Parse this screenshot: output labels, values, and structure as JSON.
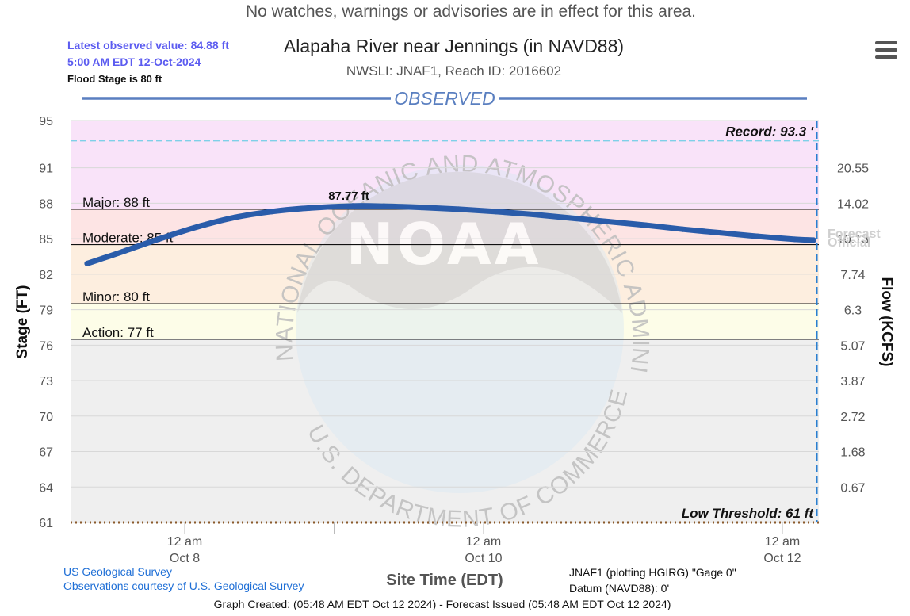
{
  "banner": "No watches, warnings or advisories are in effect for this area.",
  "observed_info": {
    "latest_line": "Latest observed value: 84.88 ft",
    "time_line": "5:00 AM EDT 12-Oct-2024",
    "flood_stage": "Flood Stage is 80 ft"
  },
  "title": "Alapaha River near Jennings (in NAVD88)",
  "subtitle": "NWSLI: JNAF1, Reach ID: 2016602",
  "section_label": "OBSERVED",
  "watermark": {
    "top_text": "NATIONAL OCEANIC AND ATMOSPHERIC ADMINISTRATION",
    "bottom_text": "U.S. DEPARTMENT OF COMMERCE",
    "logo_text": "NOAA"
  },
  "forecast_label": "Forecast",
  "official_label": "Official",
  "footer": {
    "source": "US Geological Survey",
    "courtesy": "Observations courtesy of U.S. Geological Survey",
    "gage": "JNAF1 (plotting HGIRG) \"Gage 0\"",
    "datum": "Datum (NAVD88): 0'",
    "created": "Graph Created: (05:48 AM EDT Oct 12 2024) - Forecast Issued (05:48 AM EDT Oct 12 2024)"
  },
  "colors": {
    "record_band": "#f9e3f9",
    "major_band": "#fde4e4",
    "moderate_band": "#fdeedf",
    "minor_band": "#fdf8dc",
    "action_band": "#fdfde8",
    "below_band": "#efefef",
    "series": "#2a5caa",
    "record_line": "#7fd0e8",
    "low_line": "#8b5a2b",
    "now_line": "#2a7fd0",
    "observed_header": "#5a7fc0"
  },
  "chart_data": {
    "type": "line",
    "title": "Alapaha River near Jennings (in NAVD88)",
    "xlabel": "Site Time (EDT)",
    "ylabel": "Stage (FT)",
    "y2label": "Flow (KCFS)",
    "ylim": [
      61,
      95
    ],
    "xlim": [
      "2024-10-07 08:20",
      "2024-10-12 05:00"
    ],
    "y_ticks": [
      95,
      91,
      88,
      85,
      82,
      79,
      76,
      73,
      70,
      67,
      64,
      61
    ],
    "y2_ticks": [
      {
        "stage": 91,
        "flow": "20.55"
      },
      {
        "stage": 88,
        "flow": "14.02"
      },
      {
        "stage": 85,
        "flow": "10.13"
      },
      {
        "stage": 82,
        "flow": "7.74"
      },
      {
        "stage": 79,
        "flow": "6.3"
      },
      {
        "stage": 76,
        "flow": "5.07"
      },
      {
        "stage": 73,
        "flow": "3.87"
      },
      {
        "stage": 70,
        "flow": "2.72"
      },
      {
        "stage": 67,
        "flow": "1.68"
      },
      {
        "stage": 64,
        "flow": "0.67"
      }
    ],
    "x_ticks": [
      {
        "x": "2024-10-08 00:00",
        "time": "12 am",
        "date": "Oct 8"
      },
      {
        "x": "2024-10-10 00:00",
        "time": "12 am",
        "date": "Oct 10"
      },
      {
        "x": "2024-10-12 00:00",
        "time": "12 am",
        "date": "Oct 12"
      }
    ],
    "x_minor_ticks": [
      "2024-10-09 00:00",
      "2024-10-11 00:00"
    ],
    "thresholds": [
      {
        "name": "Major",
        "label": "Major: 88 ft",
        "value": 87.5
      },
      {
        "name": "Moderate",
        "label": "Moderate: 85 ft",
        "value": 84.5
      },
      {
        "name": "Minor",
        "label": "Minor: 80 ft",
        "value": 79.5
      },
      {
        "name": "Action",
        "label": "Action: 77 ft",
        "value": 76.5
      }
    ],
    "bands": [
      {
        "from": 87.5,
        "to": 95,
        "color_key": "record_band"
      },
      {
        "from": 84.5,
        "to": 87.5,
        "color_key": "major_band"
      },
      {
        "from": 79.5,
        "to": 84.5,
        "color_key": "moderate_band"
      },
      {
        "from": 76.5,
        "to": 79.5,
        "color_key": "action_band"
      },
      {
        "from": 61,
        "to": 76.5,
        "color_key": "below_band"
      }
    ],
    "record": {
      "label": "Record: 93.3 '",
      "value": 93.3
    },
    "low_threshold": {
      "label": "Low Threshold: 61 ft",
      "value": 61
    },
    "peak_label": "87.77 ft",
    "peak": {
      "x": "2024-10-09 03:00",
      "y": 87.77
    },
    "now": "2024-10-12 05:00",
    "series": [
      {
        "points": [
          [
            "2024-10-07 08:20",
            82.9
          ],
          [
            "2024-10-07 14:00",
            83.9
          ],
          [
            "2024-10-07 20:00",
            85.0
          ],
          [
            "2024-10-08 02:00",
            86.0
          ],
          [
            "2024-10-08 08:00",
            86.8
          ],
          [
            "2024-10-08 14:00",
            87.3
          ],
          [
            "2024-10-08 20:00",
            87.6
          ],
          [
            "2024-10-09 03:00",
            87.77
          ],
          [
            "2024-10-09 08:00",
            87.75
          ],
          [
            "2024-10-09 14:00",
            87.65
          ],
          [
            "2024-10-09 20:00",
            87.5
          ],
          [
            "2024-10-10 02:00",
            87.3
          ],
          [
            "2024-10-10 08:00",
            87.05
          ],
          [
            "2024-10-10 14:00",
            86.75
          ],
          [
            "2024-10-10 20:00",
            86.45
          ],
          [
            "2024-10-11 02:00",
            86.15
          ],
          [
            "2024-10-11 08:00",
            85.8
          ],
          [
            "2024-10-11 14:00",
            85.5
          ],
          [
            "2024-10-11 20:00",
            85.2
          ],
          [
            "2024-10-12 02:00",
            84.95
          ],
          [
            "2024-10-12 05:00",
            84.88
          ]
        ]
      }
    ]
  }
}
